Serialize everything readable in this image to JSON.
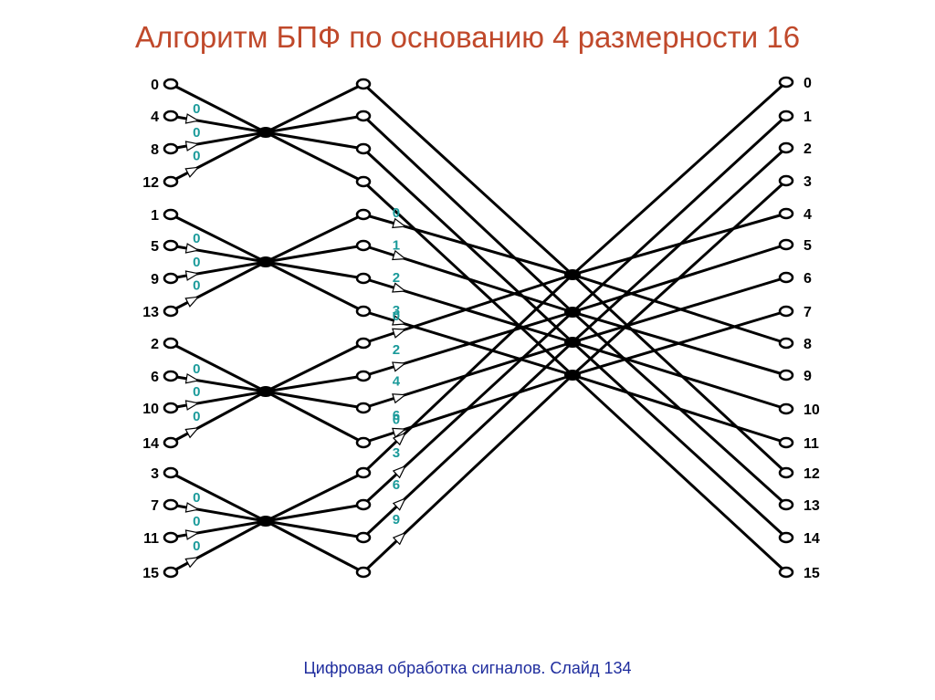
{
  "title": "Алгоритм БПФ по основанию 4 размерности 16",
  "footer": "Цифровая обработка сигналов.  Слайд  134",
  "colors": {
    "title": "#c0492b",
    "footer": "#1f2d9e",
    "twiddle": "#1a9a9a",
    "lines": "#000000"
  },
  "diagram": {
    "input_labels": [
      "0",
      "4",
      "8",
      "12",
      "1",
      "5",
      "9",
      "13",
      "2",
      "6",
      "10",
      "14",
      "3",
      "7",
      "11",
      "15"
    ],
    "output_labels": [
      "0",
      "1",
      "2",
      "3",
      "4",
      "5",
      "6",
      "7",
      "8",
      "9",
      "10",
      "11",
      "12",
      "13",
      "14",
      "15"
    ],
    "stage1_twiddles": [
      "0",
      "0",
      "0",
      "0",
      "0",
      "0",
      "0",
      "0",
      "0",
      "0",
      "0",
      "0"
    ],
    "stage2_twiddles": [
      "0",
      "1",
      "2",
      "3",
      "0",
      "2",
      "4",
      "6",
      "0",
      "3",
      "6",
      "9"
    ]
  }
}
